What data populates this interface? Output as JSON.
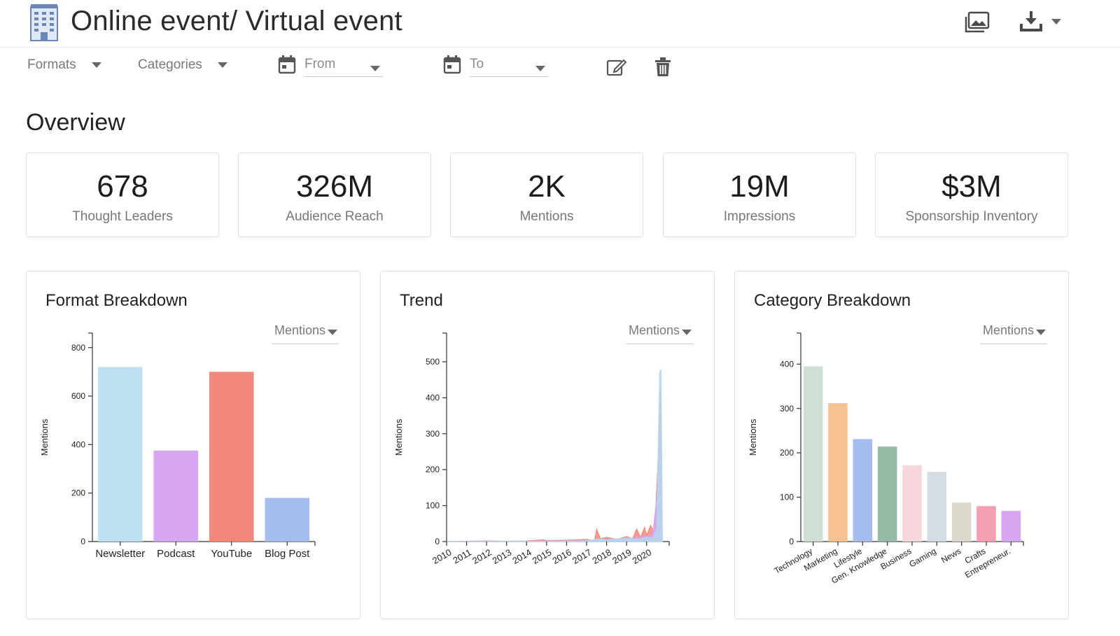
{
  "header": {
    "title": "Online event/ Virtual event",
    "logo_icon": "building-icon",
    "gallery_icon": "image-gallery-icon",
    "download_icon": "download-icon"
  },
  "filters": {
    "formats_label": "Formats",
    "categories_label": "Categories",
    "from_placeholder": "From",
    "to_placeholder": "To",
    "edit_icon": "edit-icon",
    "delete_icon": "trash-icon"
  },
  "overview": {
    "title": "Overview",
    "stats": [
      {
        "value": "678",
        "label": "Thought Leaders"
      },
      {
        "value": "326M",
        "label": "Audience Reach"
      },
      {
        "value": "2K",
        "label": "Mentions"
      },
      {
        "value": "19M",
        "label": "Impressions"
      },
      {
        "value": "$3M",
        "label": "Sponsorship Inventory"
      }
    ]
  },
  "colors": {
    "newsletter": "#bfe0f2",
    "podcast": "#d8a5f0",
    "youtube": "#f2877b",
    "blogpost": "#a5bdee"
  },
  "chart_data": [
    {
      "type": "bar",
      "title": "Format Breakdown",
      "metric_selector": "Mentions",
      "ylabel": "Mentions",
      "ylim": [
        0,
        860
      ],
      "yticks": [
        0,
        200,
        400,
        600,
        800
      ],
      "categories": [
        "Newsletter",
        "Podcast",
        "YouTube",
        "Blog Post"
      ],
      "values": [
        720,
        375,
        700,
        180
      ],
      "colors": [
        "#bfe0f2",
        "#d8a5f0",
        "#f2877b",
        "#a5bdee"
      ]
    },
    {
      "type": "area",
      "title": "Trend",
      "metric_selector": "Mentions",
      "ylabel": "Mentions",
      "ylim": [
        0,
        580
      ],
      "yticks": [
        0,
        100,
        200,
        300,
        400,
        500
      ],
      "xticks": [
        "2010",
        "2011",
        "2012",
        "2013",
        "2014",
        "2015",
        "2016",
        "2017",
        "2018",
        "2019",
        "2020"
      ],
      "xlim": [
        2010,
        2020.85
      ],
      "series": [
        {
          "color": "#f2877b",
          "x": [
            2010,
            2011,
            2012,
            2013,
            2014,
            2014.8,
            2015,
            2016,
            2016.5,
            2017,
            2017.4,
            2017.5,
            2017.7,
            2018,
            2018.5,
            2019,
            2019.3,
            2019.5,
            2019.7,
            2019.9,
            2020,
            2020.2,
            2020.4,
            2020.55,
            2020.7,
            2020.75
          ],
          "values": [
            0,
            1,
            2,
            1,
            2,
            5,
            3,
            4,
            5,
            6,
            3,
            35,
            8,
            12,
            6,
            14,
            8,
            35,
            12,
            40,
            18,
            45,
            25,
            200,
            420,
            300
          ]
        },
        {
          "color": "#d8a5f0",
          "x": [
            2010,
            2012,
            2014,
            2016,
            2017,
            2017.5,
            2018,
            2019,
            2019.5,
            2020,
            2020.3,
            2020.55,
            2020.7,
            2020.75
          ],
          "values": [
            0,
            1,
            1,
            2,
            3,
            4,
            6,
            8,
            12,
            15,
            20,
            140,
            280,
            200
          ]
        },
        {
          "color": "#b6d8ee",
          "x": [
            2010,
            2012,
            2014,
            2016,
            2017,
            2017.6,
            2018,
            2019,
            2019.5,
            2020,
            2020.3,
            2020.5,
            2020.65,
            2020.72,
            2020.8
          ],
          "values": [
            0,
            0,
            1,
            1,
            2,
            8,
            5,
            10,
            6,
            12,
            10,
            35,
            470,
            480,
            0
          ]
        }
      ]
    },
    {
      "type": "bar",
      "title": "Category Breakdown",
      "metric_selector": "Mentions",
      "ylabel": "Mentions",
      "ylim": [
        0,
        470
      ],
      "yticks": [
        0,
        100,
        200,
        300,
        400
      ],
      "categories": [
        "Technology",
        "Marketing",
        "Lifestyle",
        "Gen. Knowledge",
        "Business",
        "Gaming",
        "News",
        "Crafts",
        "Entrepreneur."
      ],
      "values": [
        395,
        312,
        231,
        214,
        172,
        157,
        88,
        80,
        69
      ],
      "colors": [
        "#d0dfd4",
        "#f6c28f",
        "#a5bdee",
        "#94b9a4",
        "#f7d6dd",
        "#d4dce4",
        "#ddd8ce",
        "#f4a0b3",
        "#d8a5f0"
      ]
    }
  ]
}
